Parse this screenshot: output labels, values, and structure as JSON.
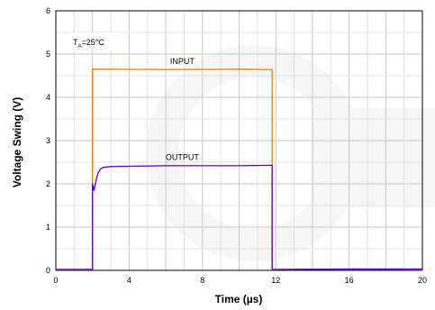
{
  "chart_data": {
    "type": "line",
    "xlabel": "Time (µs)",
    "ylabel": "Voltage Swing (V)",
    "xlim": [
      0,
      20
    ],
    "ylim": [
      0,
      6
    ],
    "xticks": [
      "0",
      "4",
      "8",
      "12",
      "16",
      "20"
    ],
    "yticks": [
      "0",
      "1",
      "2",
      "3",
      "4",
      "5",
      "6"
    ],
    "grid": true,
    "condition": {
      "main": "T",
      "sub": "A",
      "rest": "=25°C"
    },
    "series": [
      {
        "name": "INPUT",
        "color": "#f07d00",
        "x": [
          0,
          2.0,
          2.0,
          2.5,
          6.0,
          10.0,
          11.8,
          11.8,
          12.0,
          16.0,
          20.0
        ],
        "y": [
          0.02,
          0.02,
          4.65,
          4.65,
          4.64,
          4.65,
          4.64,
          0.02,
          0.02,
          0.03,
          0.02
        ]
      },
      {
        "name": "OUTPUT",
        "color": "#5500cc",
        "x": [
          0,
          2.0,
          2.0,
          2.08,
          2.18,
          2.3,
          2.45,
          2.6,
          3.0,
          6.0,
          10.0,
          11.8,
          11.8,
          12.0,
          16.0,
          20.0
        ],
        "y": [
          0.02,
          0.02,
          2.0,
          1.85,
          2.05,
          2.25,
          2.35,
          2.38,
          2.4,
          2.42,
          2.42,
          2.43,
          0.02,
          0.02,
          0.03,
          0.03
        ]
      }
    ]
  }
}
